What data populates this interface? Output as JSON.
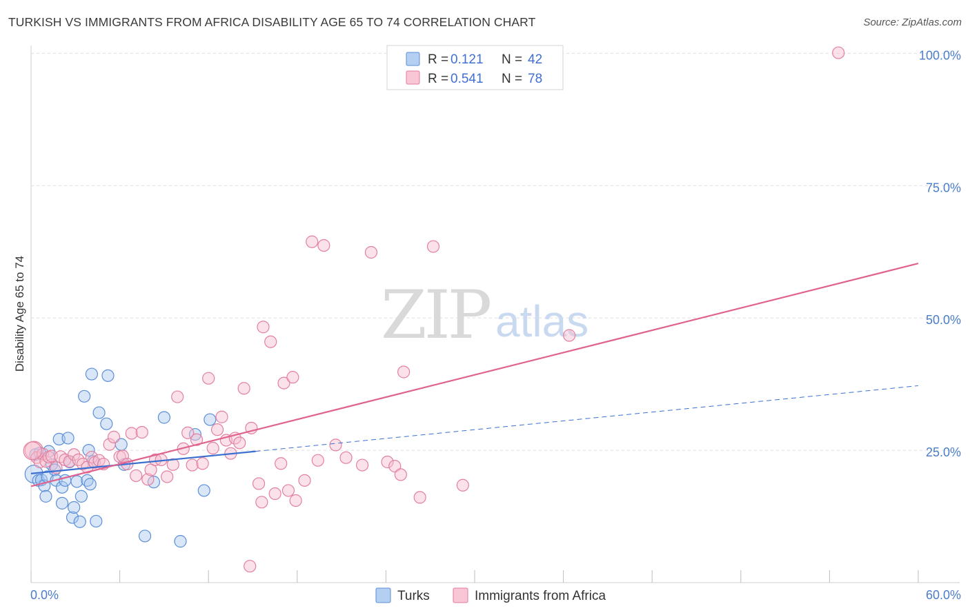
{
  "title": "TURKISH VS IMMIGRANTS FROM AFRICA DISABILITY AGE 65 TO 74 CORRELATION CHART",
  "source": "Source: ZipAtlas.com",
  "watermark": {
    "zip": "ZIP",
    "atlas": "atlas"
  },
  "chart_data": {
    "type": "scatter",
    "xlabel": "",
    "ylabel": "Disability Age 65 to 74",
    "xlim": [
      0,
      60
    ],
    "ylim": [
      0,
      102
    ],
    "x_tick_labels": [
      {
        "value": 0,
        "label": "0.0%"
      },
      {
        "value": 60,
        "label": "60.0%"
      }
    ],
    "x_minor_ticks": [
      0,
      6,
      12,
      18,
      24,
      30,
      36,
      42,
      48,
      54,
      60
    ],
    "y_ticks": [
      {
        "value": 25,
        "label": "25.0%"
      },
      {
        "value": 50,
        "label": "50.0%"
      },
      {
        "value": 75,
        "label": "75.0%"
      },
      {
        "value": 100,
        "label": "100.0%"
      }
    ],
    "legend": [
      {
        "name": "Turks",
        "r_label": "R =",
        "r_value": "0.121",
        "n_label": "N =",
        "n_value": "42",
        "color": "#8ab4e8",
        "stroke": "#5a8fd6"
      },
      {
        "name": "Immigrants from Africa",
        "r_label": "R =",
        "r_value": "0.541",
        "n_label": "N =",
        "n_value": "78",
        "color": "#f4a8c0",
        "stroke": "#e07a9d"
      }
    ],
    "series": [
      {
        "name": "Turks",
        "fill": "#a9c8f0",
        "stroke": "#5b8fd8",
        "trend_solid": {
          "x": [
            0,
            15.2
          ],
          "y": [
            20.6,
            24.8
          ]
        },
        "trend_dashed": {
          "x": [
            15.2,
            60
          ],
          "y": [
            24.8,
            37.2
          ]
        },
        "trend_color": "#3a6fd0",
        "points": [
          [
            0.2,
            20.5
          ],
          [
            0.3,
            24.2
          ],
          [
            0.5,
            19.3
          ],
          [
            0.7,
            19.4
          ],
          [
            0.9,
            18.3
          ],
          [
            1.0,
            16.3
          ],
          [
            1.1,
            20.0
          ],
          [
            1.2,
            24.8
          ],
          [
            1.4,
            22.3
          ],
          [
            1.6,
            21.3
          ],
          [
            1.7,
            19.3
          ],
          [
            1.9,
            27.1
          ],
          [
            2.1,
            18.0
          ],
          [
            2.1,
            15.0
          ],
          [
            2.3,
            19.3
          ],
          [
            2.5,
            27.3
          ],
          [
            2.6,
            22.8
          ],
          [
            2.8,
            12.3
          ],
          [
            2.9,
            14.2
          ],
          [
            3.1,
            19.1
          ],
          [
            3.3,
            11.5
          ],
          [
            3.4,
            16.3
          ],
          [
            3.6,
            35.2
          ],
          [
            3.8,
            19.3
          ],
          [
            3.9,
            25.0
          ],
          [
            4.0,
            18.6
          ],
          [
            4.1,
            39.4
          ],
          [
            4.2,
            22.9
          ],
          [
            4.4,
            11.6
          ],
          [
            4.6,
            32.1
          ],
          [
            5.1,
            30.0
          ],
          [
            5.2,
            39.1
          ],
          [
            6.1,
            26.1
          ],
          [
            6.3,
            22.3
          ],
          [
            7.7,
            8.8
          ],
          [
            8.3,
            19.0
          ],
          [
            9.0,
            31.2
          ],
          [
            10.1,
            7.8
          ],
          [
            11.1,
            28.0
          ],
          [
            11.7,
            17.4
          ],
          [
            12.1,
            30.8
          ],
          [
            0.6,
            24.5
          ]
        ]
      },
      {
        "name": "Immigrants from Africa",
        "fill": "#f7bfd0",
        "stroke": "#e2809f",
        "trend_solid": {
          "x": [
            0,
            60
          ],
          "y": [
            18.2,
            60.3
          ]
        },
        "trend_color": "#e0628f",
        "points": [
          [
            0.2,
            25.0
          ],
          [
            0.4,
            23.6
          ],
          [
            0.6,
            22.8
          ],
          [
            0.8,
            24.3
          ],
          [
            1.0,
            22.9
          ],
          [
            1.2,
            23.7
          ],
          [
            1.4,
            23.9
          ],
          [
            1.7,
            21.7
          ],
          [
            2.0,
            23.8
          ],
          [
            2.3,
            23.2
          ],
          [
            2.6,
            22.9
          ],
          [
            2.9,
            24.2
          ],
          [
            3.2,
            23.2
          ],
          [
            3.5,
            22.4
          ],
          [
            3.8,
            21.8
          ],
          [
            4.1,
            23.7
          ],
          [
            4.3,
            22.7
          ],
          [
            4.6,
            23.1
          ],
          [
            4.9,
            22.4
          ],
          [
            5.3,
            26.1
          ],
          [
            5.6,
            27.5
          ],
          [
            6.0,
            23.8
          ],
          [
            6.2,
            23.9
          ],
          [
            6.5,
            22.4
          ],
          [
            6.8,
            28.2
          ],
          [
            7.1,
            20.2
          ],
          [
            7.5,
            28.4
          ],
          [
            7.9,
            19.5
          ],
          [
            8.1,
            21.3
          ],
          [
            8.4,
            23.2
          ],
          [
            8.8,
            23.2
          ],
          [
            9.2,
            20.0
          ],
          [
            9.6,
            22.3
          ],
          [
            9.9,
            35.1
          ],
          [
            10.3,
            25.3
          ],
          [
            10.6,
            28.3
          ],
          [
            10.9,
            22.2
          ],
          [
            11.2,
            27.0
          ],
          [
            11.6,
            22.5
          ],
          [
            12.0,
            38.6
          ],
          [
            12.3,
            25.4
          ],
          [
            12.6,
            28.9
          ],
          [
            12.9,
            31.3
          ],
          [
            13.2,
            26.9
          ],
          [
            13.5,
            24.4
          ],
          [
            13.8,
            27.3
          ],
          [
            14.1,
            26.4
          ],
          [
            14.4,
            36.7
          ],
          [
            14.8,
            3.1
          ],
          [
            14.9,
            29.2
          ],
          [
            15.4,
            18.7
          ],
          [
            15.6,
            15.2
          ],
          [
            15.7,
            48.3
          ],
          [
            16.2,
            45.5
          ],
          [
            16.5,
            16.8
          ],
          [
            16.9,
            22.5
          ],
          [
            17.1,
            37.7
          ],
          [
            17.4,
            17.4
          ],
          [
            17.7,
            38.8
          ],
          [
            17.9,
            15.5
          ],
          [
            18.5,
            19.3
          ],
          [
            19.0,
            64.4
          ],
          [
            19.4,
            23.1
          ],
          [
            19.8,
            63.7
          ],
          [
            20.6,
            26.0
          ],
          [
            21.3,
            23.6
          ],
          [
            22.4,
            22.2
          ],
          [
            23.0,
            62.4
          ],
          [
            24.1,
            22.8
          ],
          [
            24.6,
            22.0
          ],
          [
            25.0,
            20.4
          ],
          [
            25.2,
            39.8
          ],
          [
            26.3,
            16.1
          ],
          [
            27.2,
            63.5
          ],
          [
            29.2,
            18.4
          ],
          [
            36.4,
            46.7
          ],
          [
            54.6,
            100.1
          ],
          [
            0.1,
            24.9
          ]
        ]
      }
    ]
  }
}
